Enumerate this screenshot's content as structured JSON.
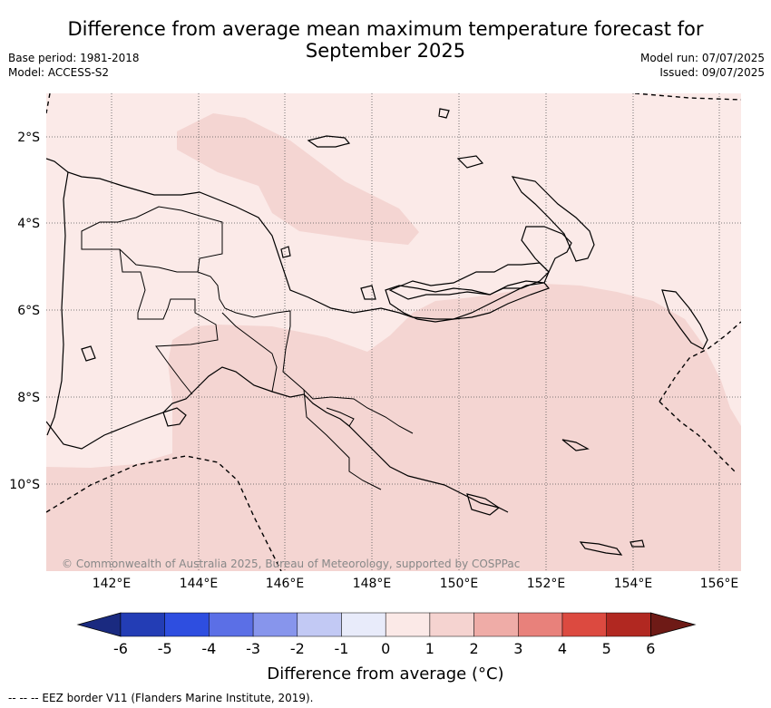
{
  "title_line1": "Difference from average mean maximum temperature forecast for",
  "title_line2": "September 2025",
  "base_period": "Base period: 1981-2018",
  "model": "Model: ACCESS-S2",
  "model_run": "Model run: 07/07/2025",
  "issued": "Issued: 09/07/2025",
  "copyright": "© Commonwealth of Australia 2025, Bureau of Meteorology, supported by COSPPac",
  "lon_labels": [
    "142°E",
    "144°E",
    "146°E",
    "148°E",
    "150°E",
    "152°E",
    "154°E",
    "156°E"
  ],
  "lat_labels": [
    "2°S",
    "4°S",
    "6°S",
    "8°S",
    "10°S"
  ],
  "colorbar": {
    "title": "Difference from average (°C)",
    "labels": [
      "-6",
      "-5",
      "-4",
      "-3",
      "-2",
      "-1",
      "0",
      "1",
      "2",
      "3",
      "4",
      "5",
      "6"
    ],
    "colors": [
      "#1a2a80",
      "#233db5",
      "#2e4ee0",
      "#5b6fe6",
      "#8795ec",
      "#c2c9f4",
      "#e8ebfa",
      "#fbe9e7",
      "#f5d3d0",
      "#efaca7",
      "#e8817b",
      "#dc4a40",
      "#b12821",
      "#6e1a16"
    ]
  },
  "footnote": "--  --  -- EEZ border V11 (Flanders Marine Institute, 2019).",
  "colors": {
    "anomaly_0_1": "#fbeae8",
    "anomaly_1_2": "#f4d5d2",
    "land_outline": "#000000",
    "grid": "#555555"
  }
}
